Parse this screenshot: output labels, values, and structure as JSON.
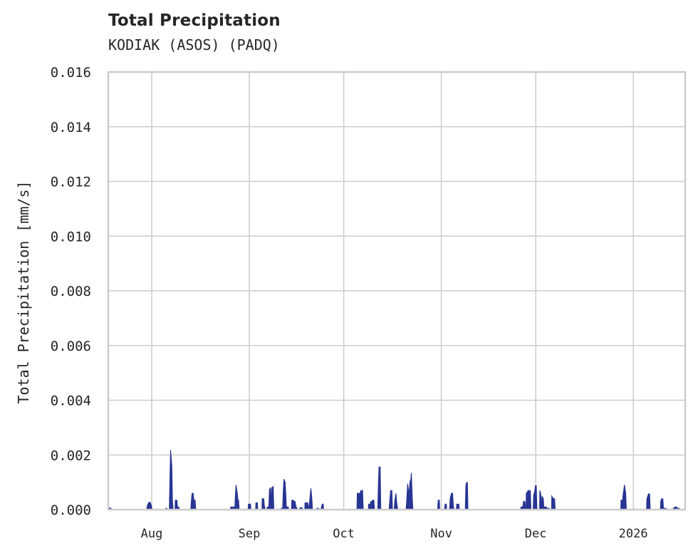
{
  "header": {
    "title": "Total Precipitation",
    "subtitle": "KODIAK (ASOS) (PADQ)"
  },
  "colors": {
    "bar": "#283593",
    "grid": "#cccccc",
    "text": "#262626"
  },
  "chart_data": {
    "type": "area",
    "title": "Total Precipitation",
    "subtitle": "KODIAK (ASOS) (PADQ)",
    "xlabel": "",
    "ylabel": "Total Precipitation [mm/s]",
    "ylim": [
      0,
      0.016
    ],
    "yticks": [
      "0.000",
      "0.002",
      "0.004",
      "0.006",
      "0.008",
      "0.010",
      "0.012",
      "0.014",
      "0.016"
    ],
    "xticks": [
      "Aug",
      "Sep",
      "Oct",
      "Nov",
      "Dec",
      "2026"
    ],
    "xtick_days_from_aug1": [
      0,
      31,
      61,
      92,
      122,
      153
    ],
    "xlim_days_from_aug1": [
      -13.8,
      169.5
    ],
    "grid": true,
    "legend": null,
    "series": [
      {
        "name": "Total Precipitation",
        "unit": "mm/s",
        "points_days_from_aug1": [
          [
            -13.6,
            6e-05
          ],
          [
            -13.0,
            6e-05
          ],
          [
            -12.6,
            0
          ],
          [
            -1.6,
            0
          ],
          [
            -1.4,
            0.00015
          ],
          [
            -0.9,
            0.00027
          ],
          [
            -0.5,
            0.00027
          ],
          [
            -0.1,
            0.00015
          ],
          [
            0.1,
            0
          ],
          [
            4.4,
            0
          ],
          [
            4.5,
            5e-05
          ],
          [
            4.8,
            5e-05
          ],
          [
            5.0,
            0
          ],
          [
            5.6,
            0
          ],
          [
            5.8,
            0.0012
          ],
          [
            6.0,
            0.00219
          ],
          [
            6.4,
            0.0016
          ],
          [
            6.6,
            0.0003
          ],
          [
            6.8,
            0
          ],
          [
            7.4,
            0
          ],
          [
            7.5,
            0.00035
          ],
          [
            8.0,
            0.00035
          ],
          [
            8.2,
            0.0001
          ],
          [
            8.6,
            0.0001
          ],
          [
            8.8,
            0
          ],
          [
            12.4,
            0
          ],
          [
            12.6,
            0.00035
          ],
          [
            12.8,
            0.0006
          ],
          [
            13.2,
            0.0006
          ],
          [
            13.4,
            0.00035
          ],
          [
            13.8,
            0.00035
          ],
          [
            14.0,
            0
          ],
          [
            25.0,
            0
          ],
          [
            25.1,
            0.0001
          ],
          [
            26.4,
            0.0001
          ],
          [
            26.6,
            0.0006
          ],
          [
            26.8,
            0.00091
          ],
          [
            27.2,
            0.0006
          ],
          [
            27.4,
            0.00035
          ],
          [
            27.6,
            0.00035
          ],
          [
            27.8,
            0
          ],
          [
            30.6,
            0
          ],
          [
            30.7,
            0.0002
          ],
          [
            31.4,
            0.0002
          ],
          [
            31.5,
            5e-05
          ],
          [
            31.6,
            0
          ],
          [
            33.0,
            0
          ],
          [
            33.1,
            0.00025
          ],
          [
            33.6,
            0.00025
          ],
          [
            33.7,
            0
          ],
          [
            35.0,
            0
          ],
          [
            35.1,
            0.0004
          ],
          [
            35.6,
            0.0004
          ],
          [
            35.8,
            0.00015
          ],
          [
            36.1,
            0
          ],
          [
            36.6,
            0
          ],
          [
            36.7,
            0.0001
          ],
          [
            37.2,
            0.0001
          ],
          [
            37.4,
            0.00075
          ],
          [
            37.8,
            0.0008
          ],
          [
            38.0,
            0.0002
          ],
          [
            38.2,
            0.0008
          ],
          [
            38.6,
            0.00085
          ],
          [
            38.8,
            0
          ],
          [
            41.0,
            0
          ],
          [
            41.1,
            5e-05
          ],
          [
            41.6,
            5e-05
          ],
          [
            41.8,
            0.0007
          ],
          [
            42.0,
            0.00112
          ],
          [
            42.4,
            0.001
          ],
          [
            42.6,
            0.0006
          ],
          [
            42.8,
            0.0001
          ],
          [
            43.4,
            0.0001
          ],
          [
            43.5,
            0
          ],
          [
            44.4,
            0
          ],
          [
            44.5,
            0.00035
          ],
          [
            45.0,
            0.00035
          ],
          [
            45.2,
            0.0003
          ],
          [
            45.6,
            0.0003
          ],
          [
            45.8,
            0.0001
          ],
          [
            46.0,
            0.0001
          ],
          [
            46.2,
            0
          ],
          [
            47.0,
            0
          ],
          [
            47.1,
            7e-05
          ],
          [
            47.8,
            7e-05
          ],
          [
            47.9,
            0
          ],
          [
            48.6,
            0
          ],
          [
            48.7,
            0.00025
          ],
          [
            49.6,
            0.00025
          ],
          [
            49.8,
            0.0001
          ],
          [
            50.0,
            0.0001
          ],
          [
            50.4,
            0.0006
          ],
          [
            50.6,
            0.00078
          ],
          [
            50.9,
            0.0004
          ],
          [
            51.1,
            0
          ],
          [
            52.4,
            0
          ],
          [
            52.5,
            5e-05
          ],
          [
            53.1,
            5e-05
          ],
          [
            53.2,
            0
          ],
          [
            53.8,
            0
          ],
          [
            53.9,
            0.0001
          ],
          [
            54.2,
            0.0002
          ],
          [
            54.5,
            0.0002
          ],
          [
            54.6,
            0
          ],
          [
            65.2,
            0
          ],
          [
            65.3,
            0.0006
          ],
          [
            66.3,
            0.0006
          ],
          [
            66.4,
            0.0007
          ],
          [
            67.0,
            0.0007
          ],
          [
            67.2,
            0
          ],
          [
            68.8,
            0
          ],
          [
            68.9,
            0.0002
          ],
          [
            69.4,
            0.0002
          ],
          [
            69.6,
            0.0003
          ],
          [
            70.0,
            0.0003
          ],
          [
            70.2,
            0.00035
          ],
          [
            70.6,
            0.00035
          ],
          [
            70.8,
            0
          ],
          [
            71.8,
            0
          ],
          [
            72.0,
            0.0009
          ],
          [
            72.2,
            0.00156
          ],
          [
            72.6,
            0.00156
          ],
          [
            72.8,
            0
          ],
          [
            75.4,
            0
          ],
          [
            75.6,
            0.0003
          ],
          [
            75.9,
            0.0007
          ],
          [
            76.3,
            0.0007
          ],
          [
            76.5,
            0
          ],
          [
            77.0,
            0
          ],
          [
            77.2,
            0.0003
          ],
          [
            77.6,
            0.0006
          ],
          [
            77.9,
            0.0002
          ],
          [
            78.2,
            0
          ],
          [
            80.8,
            0
          ],
          [
            81.0,
            0.00035
          ],
          [
            81.3,
            0.00095
          ],
          [
            81.6,
            0.0007
          ],
          [
            81.8,
            0.0006
          ],
          [
            82.0,
            0.001
          ],
          [
            82.3,
            0.0011
          ],
          [
            82.5,
            0.00135
          ],
          [
            82.8,
            0.0004
          ],
          [
            83.0,
            0
          ],
          [
            90.8,
            0
          ],
          [
            91.0,
            0.00035
          ],
          [
            91.4,
            0.00035
          ],
          [
            91.5,
            0
          ],
          [
            93.0,
            0
          ],
          [
            93.2,
            0.0002
          ],
          [
            93.6,
            0.0002
          ],
          [
            93.7,
            0
          ],
          [
            94.6,
            0
          ],
          [
            94.8,
            0.0004
          ],
          [
            95.2,
            0.0006
          ],
          [
            95.6,
            0.0006
          ],
          [
            95.8,
            0.0002
          ],
          [
            96.0,
            0
          ],
          [
            96.8,
            0
          ],
          [
            96.9,
            0.0002
          ],
          [
            97.6,
            0.0002
          ],
          [
            97.7,
            0
          ],
          [
            99.6,
            0
          ],
          [
            99.8,
            0.0009
          ],
          [
            100.0,
            0.00099
          ],
          [
            100.3,
            0.00099
          ],
          [
            100.5,
            0
          ],
          [
            117.2,
            0
          ],
          [
            117.3,
            0.0001
          ],
          [
            117.9,
            0.0001
          ],
          [
            118.1,
            0.0003
          ],
          [
            118.6,
            0.0003
          ],
          [
            118.8,
            0
          ],
          [
            118.9,
            0
          ],
          [
            119.0,
            0.0006
          ],
          [
            119.6,
            0.0007
          ],
          [
            120.3,
            0.0007
          ],
          [
            120.5,
            0
          ],
          [
            121.2,
            0
          ],
          [
            121.3,
            0.0005
          ],
          [
            121.7,
            0.0007
          ],
          [
            121.9,
            0.00088
          ],
          [
            122.2,
            0.00088
          ],
          [
            122.4,
            0
          ],
          [
            123.2,
            0
          ],
          [
            123.3,
            0.0007
          ],
          [
            123.6,
            0.0006
          ],
          [
            123.8,
            0.0001
          ],
          [
            124.0,
            0.0005
          ],
          [
            124.4,
            0.0004
          ],
          [
            124.6,
            0.0001
          ],
          [
            125.4,
            0.0001
          ],
          [
            125.5,
            5e-05
          ],
          [
            126.3,
            5e-05
          ],
          [
            126.5,
            0
          ],
          [
            127.0,
            0
          ],
          [
            127.1,
            0.0005
          ],
          [
            127.6,
            0.0004
          ],
          [
            128.0,
            0.0004
          ],
          [
            128.2,
            0
          ],
          [
            149.0,
            0
          ],
          [
            149.1,
            0.00035
          ],
          [
            149.6,
            0.00035
          ],
          [
            149.8,
            0.0006
          ],
          [
            150.2,
            0.00091
          ],
          [
            150.6,
            0.0006
          ],
          [
            150.8,
            0
          ],
          [
            157.2,
            0
          ],
          [
            157.3,
            0.0004
          ],
          [
            157.8,
            0.00058
          ],
          [
            158.2,
            0.00058
          ],
          [
            158.4,
            0
          ],
          [
            161.6,
            0
          ],
          [
            161.7,
            0.0003
          ],
          [
            162.0,
            0.0004
          ],
          [
            162.4,
            0.0004
          ],
          [
            162.6,
            5e-05
          ],
          [
            163.4,
            5e-05
          ],
          [
            163.5,
            0
          ],
          [
            165.6,
            0
          ],
          [
            165.7,
            5e-05
          ],
          [
            166.3,
            0.0001
          ],
          [
            166.8,
            0.0001
          ],
          [
            167.0,
            5e-05
          ],
          [
            167.6,
            5e-05
          ],
          [
            167.8,
            0
          ]
        ]
      }
    ]
  }
}
